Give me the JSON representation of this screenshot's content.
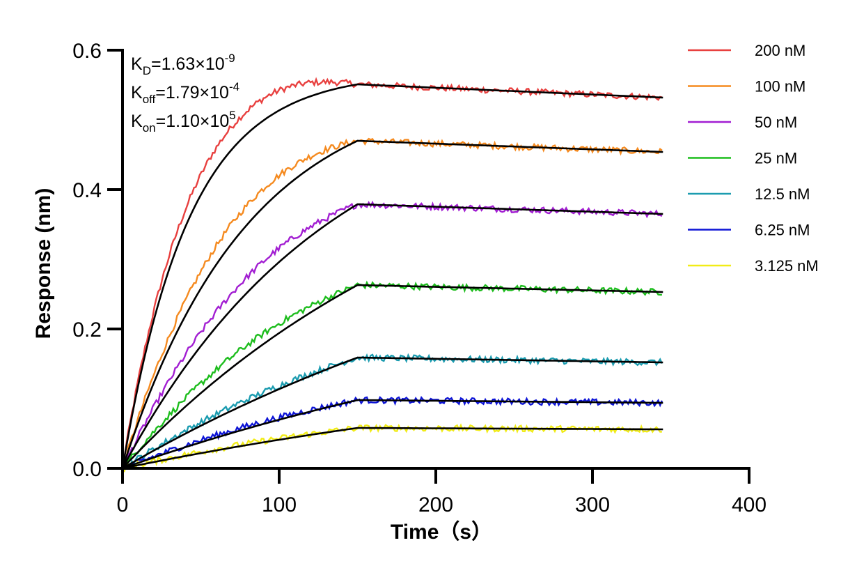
{
  "chart_data": {
    "type": "line",
    "title": "",
    "xlabel": "Time（s）",
    "ylabel": "Response (nm)",
    "xlim": [
      0,
      400
    ],
    "ylim": [
      0,
      0.6
    ],
    "x_ticks": [
      {
        "value": 0,
        "label": "0"
      },
      {
        "value": 100,
        "label": "100"
      },
      {
        "value": 200,
        "label": "200"
      },
      {
        "value": 300,
        "label": "300"
      },
      {
        "value": 400,
        "label": "400"
      }
    ],
    "y_ticks": [
      {
        "value": 0,
        "label": "0.0"
      },
      {
        "value": 0.2,
        "label": "0.2"
      },
      {
        "value": 0.4,
        "label": "0.4"
      },
      {
        "value": 0.6,
        "label": "0.6"
      }
    ],
    "grid": false,
    "legend_position": "right",
    "annotations": [
      {
        "main": "K",
        "sub": "D",
        "value": "=1.63×10",
        "exp": "-9"
      },
      {
        "main": "K",
        "sub": "off",
        "value": "=1.79×10",
        "exp": "-4"
      },
      {
        "main": "K",
        "sub": "on",
        "value": "=1.10×10",
        "exp": "5"
      }
    ],
    "fit_color": "#000000",
    "association_end": 150,
    "time_end": 345,
    "series": [
      {
        "name": "200 nM",
        "color": "#e8403f",
        "plateau": 0.551,
        "kobs": 0.0235,
        "end": 0.532
      },
      {
        "name": "100 nM",
        "color": "#f58a1f",
        "plateau": 0.47,
        "kobs": 0.0125,
        "end": 0.454
      },
      {
        "name": "50 nM",
        "color": "#a21ed2",
        "plateau": 0.379,
        "kobs": 0.0075,
        "end": 0.365
      },
      {
        "name": "25 nM",
        "color": "#1dbd1d",
        "plateau": 0.263,
        "kobs": 0.0045,
        "end": 0.253
      },
      {
        "name": "12.5 nM",
        "color": "#1c9cb0",
        "plateau": 0.159,
        "kobs": 0.003,
        "end": 0.152
      },
      {
        "name": "6.25 nM",
        "color": "#0d14d6",
        "plateau": 0.098,
        "kobs": 0.0028,
        "end": 0.094
      },
      {
        "name": "3.125 nM",
        "color": "#f1ec17",
        "plateau": 0.058,
        "kobs": 0.0025,
        "end": 0.056
      }
    ]
  }
}
